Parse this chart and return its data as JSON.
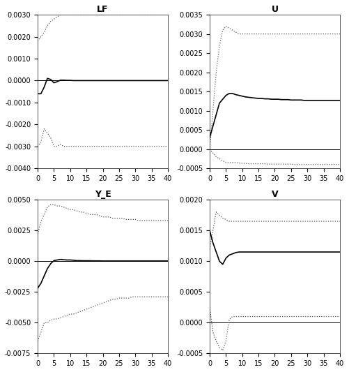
{
  "panels": [
    {
      "title": "LF",
      "ylim": [
        -0.004,
        0.003
      ],
      "yticks": [
        -0.004,
        -0.003,
        -0.002,
        -0.001,
        0.0,
        0.001,
        0.002,
        0.003
      ],
      "solid": [
        [
          -0.0006,
          -0.0006,
          -0.0003,
          0.0001,
          5e-05,
          -0.0001,
          -5e-05,
          2e-05,
          2e-05,
          1e-05,
          1e-05,
          0.0,
          0.0,
          0.0,
          0.0,
          0.0,
          0.0,
          0.0,
          0.0,
          0.0,
          0.0,
          0.0,
          0.0,
          0.0,
          0.0,
          0.0,
          0.0,
          0.0,
          0.0,
          0.0,
          0.0,
          0.0,
          0.0,
          0.0,
          0.0,
          0.0,
          0.0,
          0.0,
          0.0,
          0.0,
          0.0
        ]
      ],
      "upper": [
        [
          0.0018,
          0.002,
          0.0022,
          0.0025,
          0.0027,
          0.0028,
          0.0029,
          0.003,
          0.003,
          0.003,
          0.003,
          0.003,
          0.003,
          0.003,
          0.003,
          0.003,
          0.003,
          0.003,
          0.003,
          0.003,
          0.003,
          0.003,
          0.003,
          0.003,
          0.003,
          0.003,
          0.003,
          0.003,
          0.003,
          0.003,
          0.003,
          0.003,
          0.003,
          0.003,
          0.003,
          0.003,
          0.003,
          0.003,
          0.003,
          0.003,
          0.003
        ]
      ],
      "lower": [
        [
          -0.003,
          -0.0028,
          -0.0022,
          -0.0024,
          -0.0026,
          -0.003,
          -0.003,
          -0.0029,
          -0.003,
          -0.003,
          -0.003,
          -0.003,
          -0.003,
          -0.003,
          -0.003,
          -0.003,
          -0.003,
          -0.003,
          -0.003,
          -0.003,
          -0.003,
          -0.003,
          -0.003,
          -0.003,
          -0.003,
          -0.003,
          -0.003,
          -0.003,
          -0.003,
          -0.003,
          -0.003,
          -0.003,
          -0.003,
          -0.003,
          -0.003,
          -0.003,
          -0.003,
          -0.003,
          -0.003,
          -0.003,
          -0.003
        ]
      ]
    },
    {
      "title": "U",
      "ylim": [
        -0.0005,
        0.0035
      ],
      "yticks": [
        -0.0005,
        0.0,
        0.0005,
        0.001,
        0.0015,
        0.002,
        0.0025,
        0.003,
        0.0035
      ],
      "solid": [
        [
          0.0003,
          0.0006,
          0.0009,
          0.0012,
          0.0013,
          0.0014,
          0.00145,
          0.00145,
          0.00142,
          0.0014,
          0.00138,
          0.00136,
          0.00135,
          0.00134,
          0.00133,
          0.00132,
          0.00132,
          0.00131,
          0.00131,
          0.0013,
          0.0013,
          0.0013,
          0.00129,
          0.00129,
          0.00129,
          0.00128,
          0.00128,
          0.00128,
          0.00128,
          0.00127,
          0.00127,
          0.00127,
          0.00127,
          0.00127,
          0.00127,
          0.00127,
          0.00127,
          0.00127,
          0.00127,
          0.00127,
          0.00127
        ]
      ],
      "upper": [
        [
          0.0,
          0.001,
          0.002,
          0.0027,
          0.0031,
          0.0032,
          0.00315,
          0.0031,
          0.00305,
          0.003,
          0.003,
          0.003,
          0.003,
          0.003,
          0.003,
          0.003,
          0.003,
          0.003,
          0.003,
          0.003,
          0.003,
          0.003,
          0.003,
          0.003,
          0.003,
          0.003,
          0.003,
          0.003,
          0.003,
          0.003,
          0.003,
          0.003,
          0.003,
          0.003,
          0.003,
          0.003,
          0.003,
          0.003,
          0.003,
          0.003,
          0.003
        ]
      ],
      "lower": [
        [
          0.0,
          -0.0001,
          -0.0002,
          -0.00025,
          -0.0003,
          -0.00035,
          -0.00035,
          -0.00035,
          -0.00035,
          -0.00036,
          -0.00037,
          -0.00037,
          -0.00038,
          -0.00038,
          -0.00038,
          -0.00038,
          -0.00038,
          -0.00038,
          -0.00039,
          -0.00039,
          -0.00039,
          -0.00039,
          -0.00039,
          -0.00039,
          -0.00039,
          -0.00039,
          -0.0004,
          -0.0004,
          -0.0004,
          -0.0004,
          -0.0004,
          -0.0004,
          -0.0004,
          -0.0004,
          -0.0004,
          -0.0004,
          -0.0004,
          -0.0004,
          -0.0004,
          -0.0004,
          -0.0004
        ]
      ]
    },
    {
      "title": "Y_E",
      "ylim": [
        -0.0075,
        0.005
      ],
      "yticks": [
        -0.0075,
        -0.005,
        -0.0025,
        0.0,
        0.0025,
        0.005
      ],
      "solid": [
        [
          -0.0022,
          -0.0018,
          -0.0012,
          -0.0006,
          -0.0002,
          5e-05,
          0.0001,
          0.00015,
          0.00012,
          0.0001,
          0.0001,
          8e-05,
          5e-05,
          5e-05,
          4e-05,
          4e-05,
          4e-05,
          3e-05,
          3e-05,
          3e-05,
          2e-05,
          2e-05,
          2e-05,
          2e-05,
          2e-05,
          2e-05,
          2e-05,
          2e-05,
          2e-05,
          2e-05,
          2e-05,
          2e-05,
          2e-05,
          2e-05,
          2e-05,
          2e-05,
          2e-05,
          2e-05,
          2e-05,
          2e-05,
          2e-05
        ]
      ],
      "upper": [
        [
          0.0022,
          0.0032,
          0.0038,
          0.0044,
          0.0046,
          0.0046,
          0.0045,
          0.0045,
          0.0044,
          0.0043,
          0.0042,
          0.0042,
          0.0041,
          0.004,
          0.004,
          0.0039,
          0.0038,
          0.0038,
          0.0038,
          0.0037,
          0.0036,
          0.0036,
          0.0036,
          0.0035,
          0.0035,
          0.0035,
          0.0035,
          0.0034,
          0.0034,
          0.0034,
          0.0034,
          0.0033,
          0.0033,
          0.0033,
          0.0033,
          0.0033,
          0.0033,
          0.0033,
          0.0033,
          0.0033,
          0.0033
        ]
      ],
      "lower": [
        [
          -0.0065,
          -0.0058,
          -0.005,
          -0.005,
          -0.0048,
          -0.0047,
          -0.0047,
          -0.0046,
          -0.0045,
          -0.0044,
          -0.0043,
          -0.0043,
          -0.0042,
          -0.0041,
          -0.004,
          -0.0039,
          -0.0038,
          -0.0037,
          -0.0036,
          -0.0035,
          -0.0034,
          -0.0033,
          -0.0032,
          -0.0031,
          -0.0031,
          -0.003,
          -0.003,
          -0.003,
          -0.003,
          -0.0029,
          -0.0029,
          -0.0029,
          -0.0029,
          -0.0029,
          -0.0029,
          -0.0029,
          -0.0029,
          -0.0029,
          -0.0029,
          -0.0029,
          -0.0029
        ]
      ]
    },
    {
      "title": "V",
      "ylim": [
        -0.0005,
        0.002
      ],
      "yticks": [
        -0.0005,
        0.0,
        0.0005,
        0.001,
        0.0015,
        0.002
      ],
      "solid": [
        [
          0.0015,
          0.0013,
          0.00115,
          0.001,
          0.00095,
          0.00105,
          0.0011,
          0.00112,
          0.00114,
          0.00115,
          0.00115,
          0.00115,
          0.00115,
          0.00115,
          0.00115,
          0.00115,
          0.00115,
          0.00115,
          0.00115,
          0.00115,
          0.00115,
          0.00115,
          0.00115,
          0.00115,
          0.00115,
          0.00115,
          0.00115,
          0.00115,
          0.00115,
          0.00115,
          0.00115,
          0.00115,
          0.00115,
          0.00115,
          0.00115,
          0.00115,
          0.00115,
          0.00115,
          0.00115,
          0.00115,
          0.00115
        ]
      ],
      "upper": [
        [
          0.0012,
          0.0015,
          0.0018,
          0.00175,
          0.0017,
          0.00168,
          0.00165,
          0.00165,
          0.00165,
          0.00165,
          0.00165,
          0.00165,
          0.00165,
          0.00165,
          0.00165,
          0.00165,
          0.00165,
          0.00165,
          0.00165,
          0.00165,
          0.00165,
          0.00165,
          0.00165,
          0.00165,
          0.00165,
          0.00165,
          0.00165,
          0.00165,
          0.00165,
          0.00165,
          0.00165,
          0.00165,
          0.00165,
          0.00165,
          0.00165,
          0.00165,
          0.00165,
          0.00165,
          0.00165,
          0.00165,
          0.00165
        ]
      ],
      "lower": [
        [
          0.00025,
          -0.00015,
          -0.0003,
          -0.0004,
          -0.00045,
          -0.0003,
          5e-05,
          0.0001,
          0.0001,
          0.0001,
          0.0001,
          0.0001,
          0.0001,
          0.0001,
          0.0001,
          0.0001,
          0.0001,
          0.0001,
          0.0001,
          0.0001,
          0.0001,
          0.0001,
          0.0001,
          0.0001,
          0.0001,
          0.0001,
          0.0001,
          0.0001,
          0.0001,
          0.0001,
          0.0001,
          0.0001,
          0.0001,
          0.0001,
          0.0001,
          0.0001,
          0.0001,
          0.0001,
          0.0001,
          0.0001,
          0.0001
        ]
      ]
    }
  ],
  "n_periods": 41,
  "xticks": [
    0,
    5,
    10,
    15,
    20,
    25,
    30,
    35,
    40
  ],
  "solid_color": "#000000",
  "dotted_color": "#555555",
  "zero_line_color": "#000000",
  "background_color": "#ffffff",
  "title_fontsize": 9,
  "tick_fontsize": 7
}
